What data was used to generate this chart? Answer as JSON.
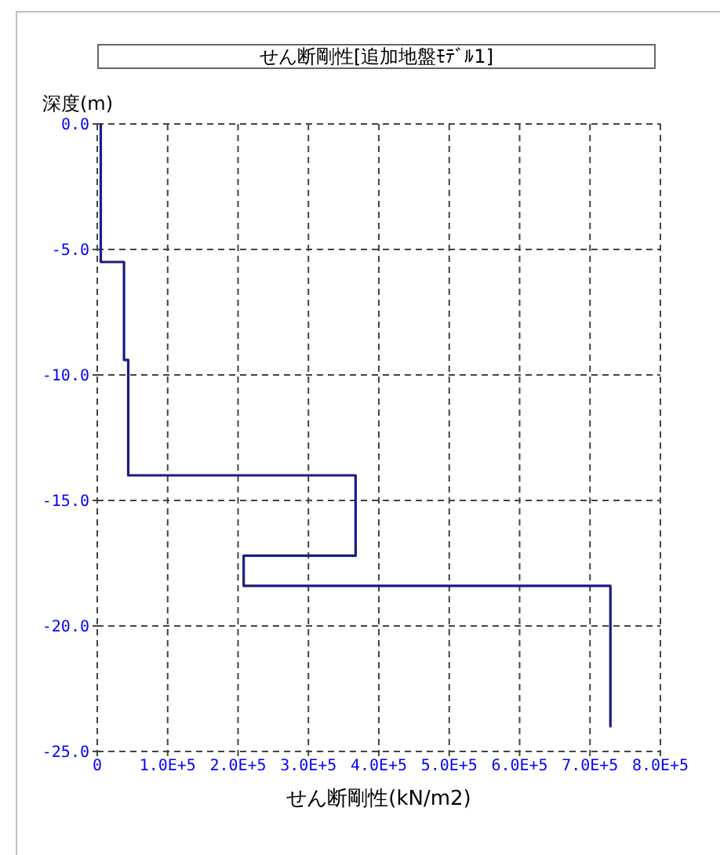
{
  "chart_data": {
    "type": "line",
    "title": "せん断剛性[追加地盤ﾓﾃﾞﾙ1]",
    "xlabel": "せん断剛性(kN/m2)",
    "ylabel": "深度(m)",
    "x": [
      5000,
      5000,
      38000,
      38000,
      44000,
      44000,
      367000,
      367000,
      208000,
      208000,
      729000,
      729000
    ],
    "values": [
      0,
      -5.5,
      -5.5,
      -9.4,
      -9.4,
      -14.0,
      -14.0,
      -17.2,
      -17.2,
      -18.4,
      -18.4,
      -24.0
    ],
    "color": "#1c1c84",
    "xlim": [
      0,
      800000
    ],
    "xticks": [
      0,
      {
        "value": 100000,
        "label": "1.0E+5"
      },
      {
        "value": 200000,
        "label": "2.0E+5"
      },
      {
        "value": 300000,
        "label": "3.0E+5"
      },
      {
        "value": 400000,
        "label": "4.0E+5"
      },
      {
        "value": 500000,
        "label": "5.0E+5"
      },
      {
        "value": 600000,
        "label": "6.0E+5"
      },
      {
        "value": 700000,
        "label": "7.0E+5"
      },
      {
        "value": 800000,
        "label": "8.0E+5"
      }
    ],
    "ylim": [
      -25,
      0
    ],
    "yticks": [
      {
        "value": -25,
        "label": "-25.0"
      },
      {
        "value": -20,
        "label": "-20.0"
      },
      {
        "value": -15,
        "label": "-15.0"
      },
      {
        "value": -10,
        "label": "-10.0"
      },
      {
        "value": -5,
        "label": "-5.0"
      },
      {
        "value": 0,
        "label": "0.0"
      }
    ],
    "grid": true
  }
}
